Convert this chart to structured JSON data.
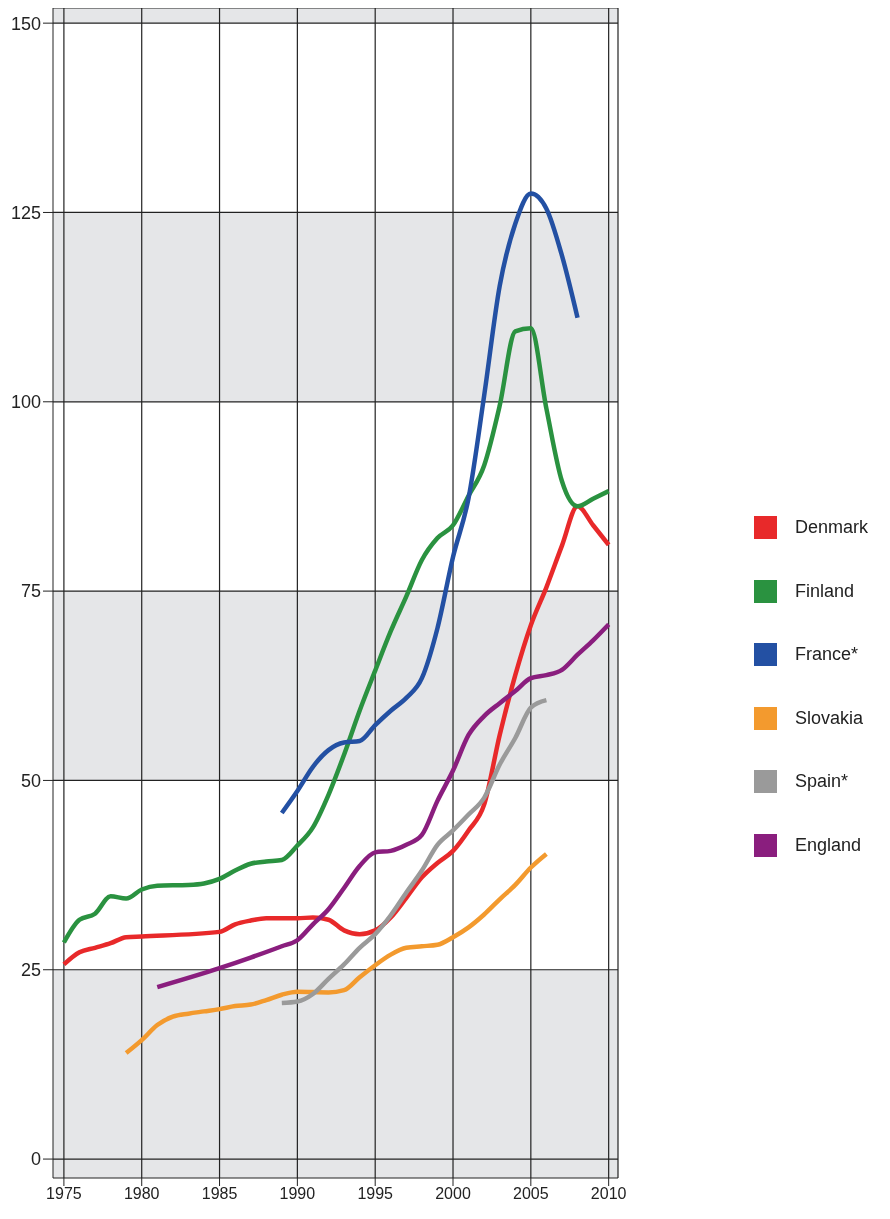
{
  "chart_data": {
    "type": "line",
    "series": [
      {
        "name": "Denmark",
        "color": "#e8292a",
        "x": [
          1975,
          1976,
          1977,
          1978,
          1979,
          1980,
          1985,
          1986,
          1987,
          1988,
          1990,
          1991,
          1992,
          1993,
          1994,
          1995,
          1996,
          1997,
          1998,
          1999,
          2000,
          2001,
          2002,
          2003,
          2004,
          2005,
          2006,
          2007,
          2008,
          2009,
          2010
        ],
        "values": [
          25.7,
          27.3,
          27.9,
          28.5,
          29.3,
          29.4,
          30,
          31,
          31.5,
          31.8,
          31.8,
          31.9,
          31.6,
          30.2,
          29.7,
          30.2,
          31.9,
          34.5,
          37.2,
          39.1,
          40.7,
          43.4,
          46.8,
          56,
          63.9,
          70.5,
          75.5,
          81,
          86.2,
          83.7,
          81.1
        ]
      },
      {
        "name": "Finland",
        "color": "#2a9240",
        "x": [
          1975,
          1976,
          1977,
          1978,
          1979,
          1980,
          1981,
          1983,
          1984,
          1985,
          1986,
          1987,
          1988,
          1989,
          1990,
          1991,
          1992,
          1993,
          1994,
          1995,
          1996,
          1997,
          1998,
          1999,
          2000,
          2001,
          2002,
          2003,
          2004,
          2005,
          2006,
          2007,
          2008,
          2009,
          2010
        ],
        "values": [
          28.6,
          31.6,
          32.4,
          34.7,
          34.4,
          35.6,
          36.1,
          36.2,
          36.4,
          37,
          38.1,
          39,
          39.3,
          39.5,
          41.4,
          43.8,
          48.1,
          53.4,
          59.2,
          64.5,
          69.7,
          74.3,
          79.1,
          82,
          83.7,
          87.6,
          91.6,
          99.5,
          109.3,
          109.7,
          99.1,
          89.5,
          86.2,
          87.2,
          88.2
        ]
      },
      {
        "name": "France*",
        "color": "#2350a3",
        "x": [
          1989,
          1990,
          1991,
          1992,
          1993,
          1994,
          1995,
          1996,
          1997,
          1998,
          1999,
          2000,
          2001,
          2002,
          2003,
          2004,
          2005,
          2006,
          2007,
          2008
        ],
        "values": [
          45.7,
          48.6,
          51.8,
          54,
          55,
          55.2,
          57.3,
          59.2,
          60.9,
          63.5,
          70.1,
          79.5,
          87.3,
          100.8,
          115.3,
          123.5,
          127.5,
          125.5,
          119.3,
          111.1
        ]
      },
      {
        "name": "Slovakia",
        "color": "#f39a2e",
        "x": [
          1979,
          1980,
          1981,
          1982,
          1983,
          1984,
          1985,
          1986,
          1987,
          1988,
          1989,
          1990,
          1992,
          1993,
          1994,
          1995,
          1996,
          1997,
          1998,
          1999,
          2000,
          2001,
          2002,
          2003,
          2004,
          2005,
          2006
        ],
        "values": [
          14,
          15.7,
          17.7,
          18.8,
          19.2,
          19.5,
          19.8,
          20.2,
          20.4,
          21,
          21.7,
          22.1,
          22,
          22.3,
          24,
          25.6,
          27,
          27.9,
          28.1,
          28.3,
          29.3,
          30.6,
          32.3,
          34.3,
          36.2,
          38.5,
          40.3
        ]
      },
      {
        "name": "Spain*",
        "color": "#9a9a9a",
        "x": [
          1989,
          1990,
          1991,
          1992,
          1993,
          1994,
          1995,
          1996,
          1997,
          1998,
          1999,
          2000,
          2001,
          2002,
          2003,
          2004,
          2005,
          2006
        ],
        "values": [
          20.6,
          20.8,
          21.8,
          23.8,
          25.7,
          27.9,
          29.7,
          32.2,
          35.2,
          38.1,
          41.5,
          43.4,
          45.5,
          47.7,
          52.1,
          55.6,
          59.6,
          60.6
        ]
      },
      {
        "name": "England",
        "color": "#8a1e7e",
        "x": [
          1981,
          1985,
          1987,
          1989,
          1990,
          1991,
          1992,
          1993,
          1994,
          1995,
          1996,
          1997,
          1998,
          1999,
          2000,
          2001,
          2002,
          2003,
          2004,
          2005,
          2006,
          2007,
          2008,
          2009,
          2010
        ],
        "values": [
          22.7,
          25.2,
          26.6,
          28.1,
          28.9,
          31,
          33,
          35.8,
          38.7,
          40.5,
          40.7,
          41.5,
          42.8,
          47.3,
          51.3,
          56,
          58.5,
          60.2,
          61.8,
          63.5,
          63.9,
          64.6,
          66.6,
          68.5,
          70.6
        ]
      }
    ],
    "xlim": [
      1974.3,
      2010.6
    ],
    "xticks": [
      1975,
      1980,
      1985,
      1990,
      1995,
      2000,
      2005,
      2010
    ],
    "ylim": [
      -2.5,
      152
    ],
    "yticks": [
      0,
      25,
      50,
      75,
      100,
      125,
      150
    ],
    "bands": [
      {
        "axis": "y",
        "from": -2.5,
        "to": 25,
        "color": "#e5e6e8"
      },
      {
        "axis": "y",
        "from": 50,
        "to": 75,
        "color": "#e5e6e8"
      },
      {
        "axis": "y",
        "from": 100,
        "to": 125,
        "color": "#e5e6e8"
      },
      {
        "axis": "y",
        "from": 150,
        "to": 152,
        "color": "#e5e6e8"
      }
    ],
    "grid": true,
    "legend": "right",
    "line_style": "solid"
  }
}
